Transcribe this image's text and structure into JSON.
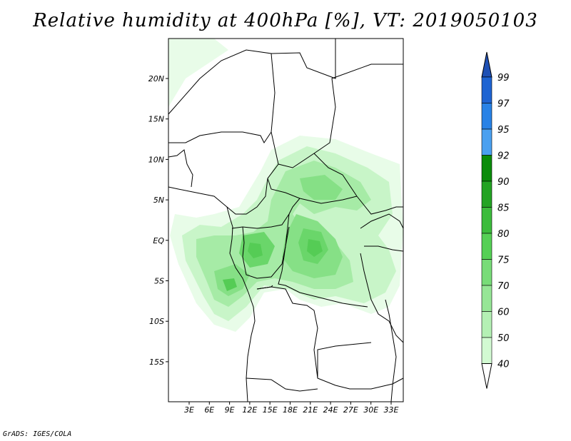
{
  "title": "Relative humidity at 400hPa [%], VT: 2019050103",
  "credit": "GrADS: IGES/COLA",
  "map": {
    "lat_labels": [
      "20N",
      "15N",
      "10N",
      "5N",
      "EQ",
      "5S",
      "10S",
      "15S"
    ],
    "lon_labels": [
      "3E",
      "6E",
      "9E",
      "12E",
      "15E",
      "18E",
      "21E",
      "24E",
      "27E",
      "30E",
      "33E"
    ]
  },
  "colorbar": {
    "levels": [
      "99",
      "97",
      "95",
      "92",
      "90",
      "85",
      "80",
      "75",
      "70",
      "60",
      "50",
      "40"
    ],
    "colors": [
      "#1e64d2",
      "#2882e6",
      "#4aa0f0",
      "#0a8c0a",
      "#23a323",
      "#3cbc3c",
      "#55d055",
      "#78dc78",
      "#96e696",
      "#b4f0b4",
      "#d2fad2",
      "#f0fff0"
    ],
    "top_arrow_color": "#1e50b4",
    "bottom_arrow_color": "#ffffff"
  }
}
